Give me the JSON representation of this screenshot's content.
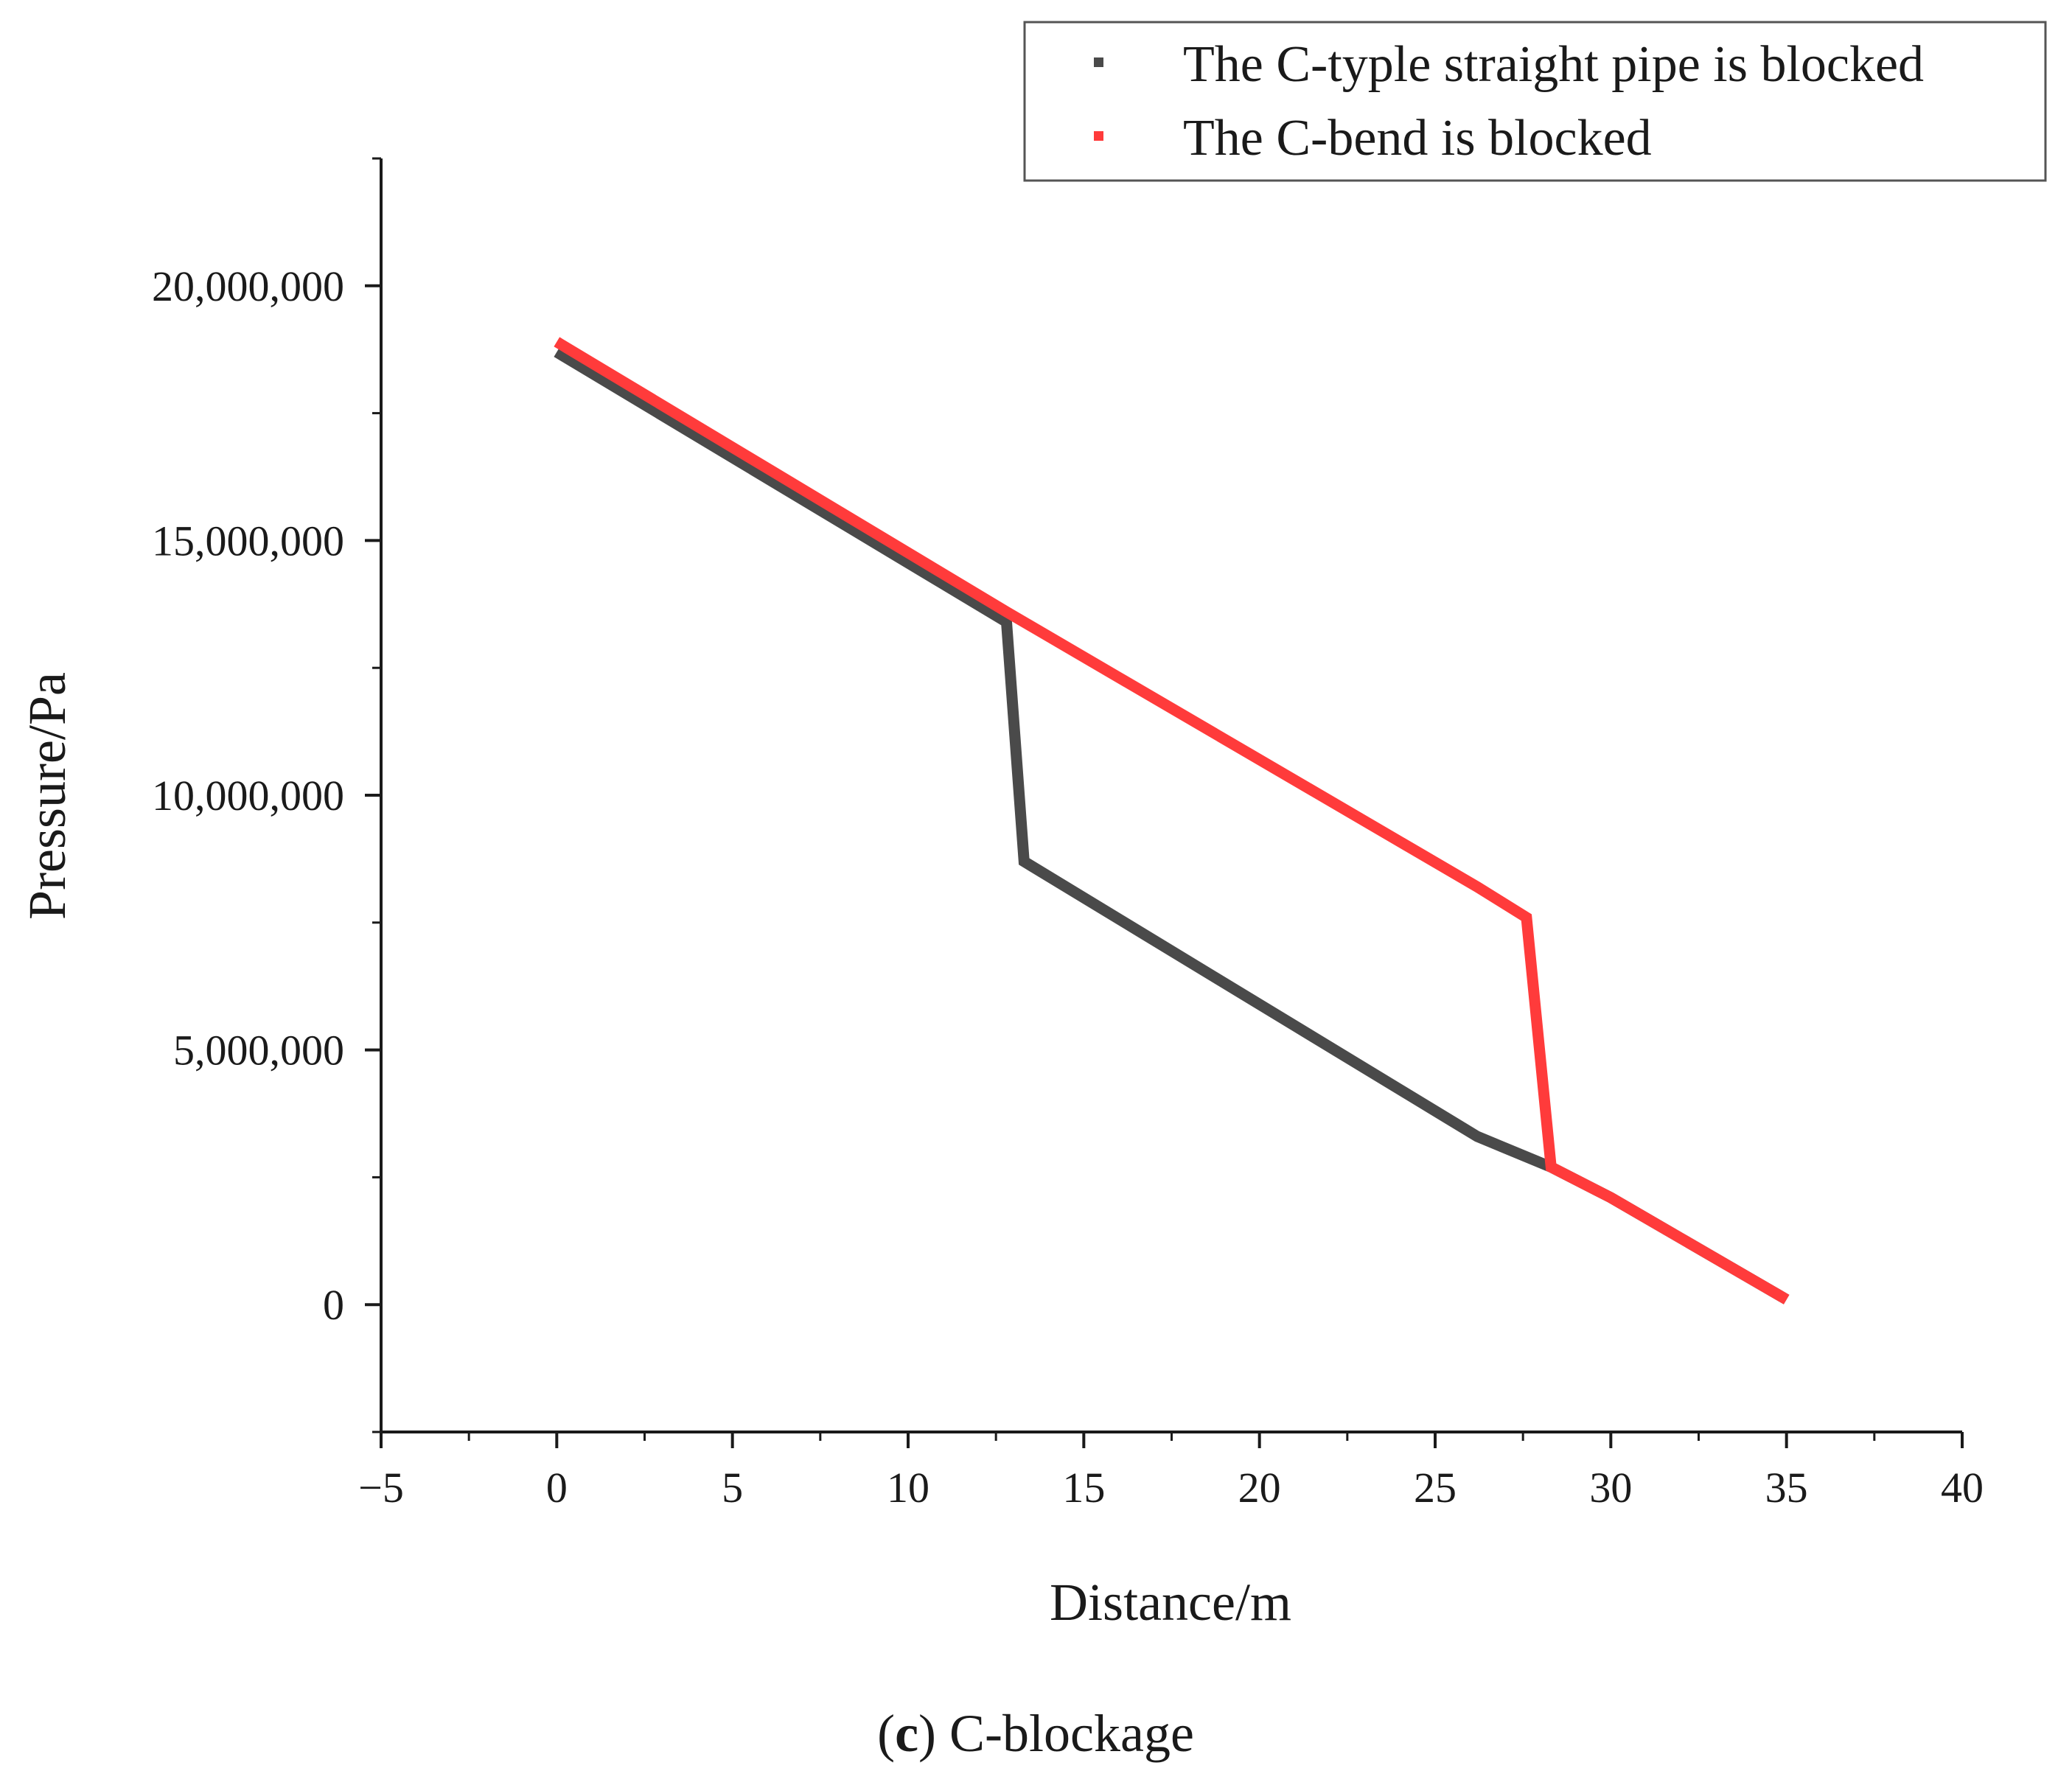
{
  "chart_data": {
    "type": "line",
    "xlabel": "Distance/m",
    "ylabel": "Pressure/Pa",
    "xlim": [
      -5,
      40
    ],
    "ylim": [
      -2500000,
      22500000
    ],
    "x_ticks": [
      -5,
      0,
      5,
      10,
      15,
      20,
      25,
      30,
      35,
      40
    ],
    "x_tick_labels": [
      "−5",
      "0",
      "5",
      "10",
      "15",
      "20",
      "25",
      "30",
      "35",
      "40"
    ],
    "y_ticks": [
      0,
      5000000,
      10000000,
      15000000,
      20000000
    ],
    "y_tick_labels": [
      "0",
      "5,000,000",
      "10,000,000",
      "15,000,000",
      "20,000,000"
    ],
    "grid": false,
    "legend_position": "top-right",
    "series": [
      {
        "name": "The C-typle straight pipe is blocked",
        "color": "#4a4a4a",
        "x": [
          0,
          12.8,
          13.3,
          26.2,
          28.3,
          30,
          35
        ],
        "y": [
          18700000,
          13400000,
          8700000,
          3300000,
          2700000,
          2100000,
          100000
        ]
      },
      {
        "name": "The C-bend is blocked",
        "color": "#ff3b3b",
        "x": [
          0,
          12.8,
          26.2,
          27.6,
          28.3,
          30,
          35
        ],
        "y": [
          18900000,
          13600000,
          8200000,
          7600000,
          2700000,
          2100000,
          100000
        ]
      }
    ]
  },
  "caption": {
    "open_paren": "(",
    "letter": "c",
    "rest": ") C-blockage"
  }
}
